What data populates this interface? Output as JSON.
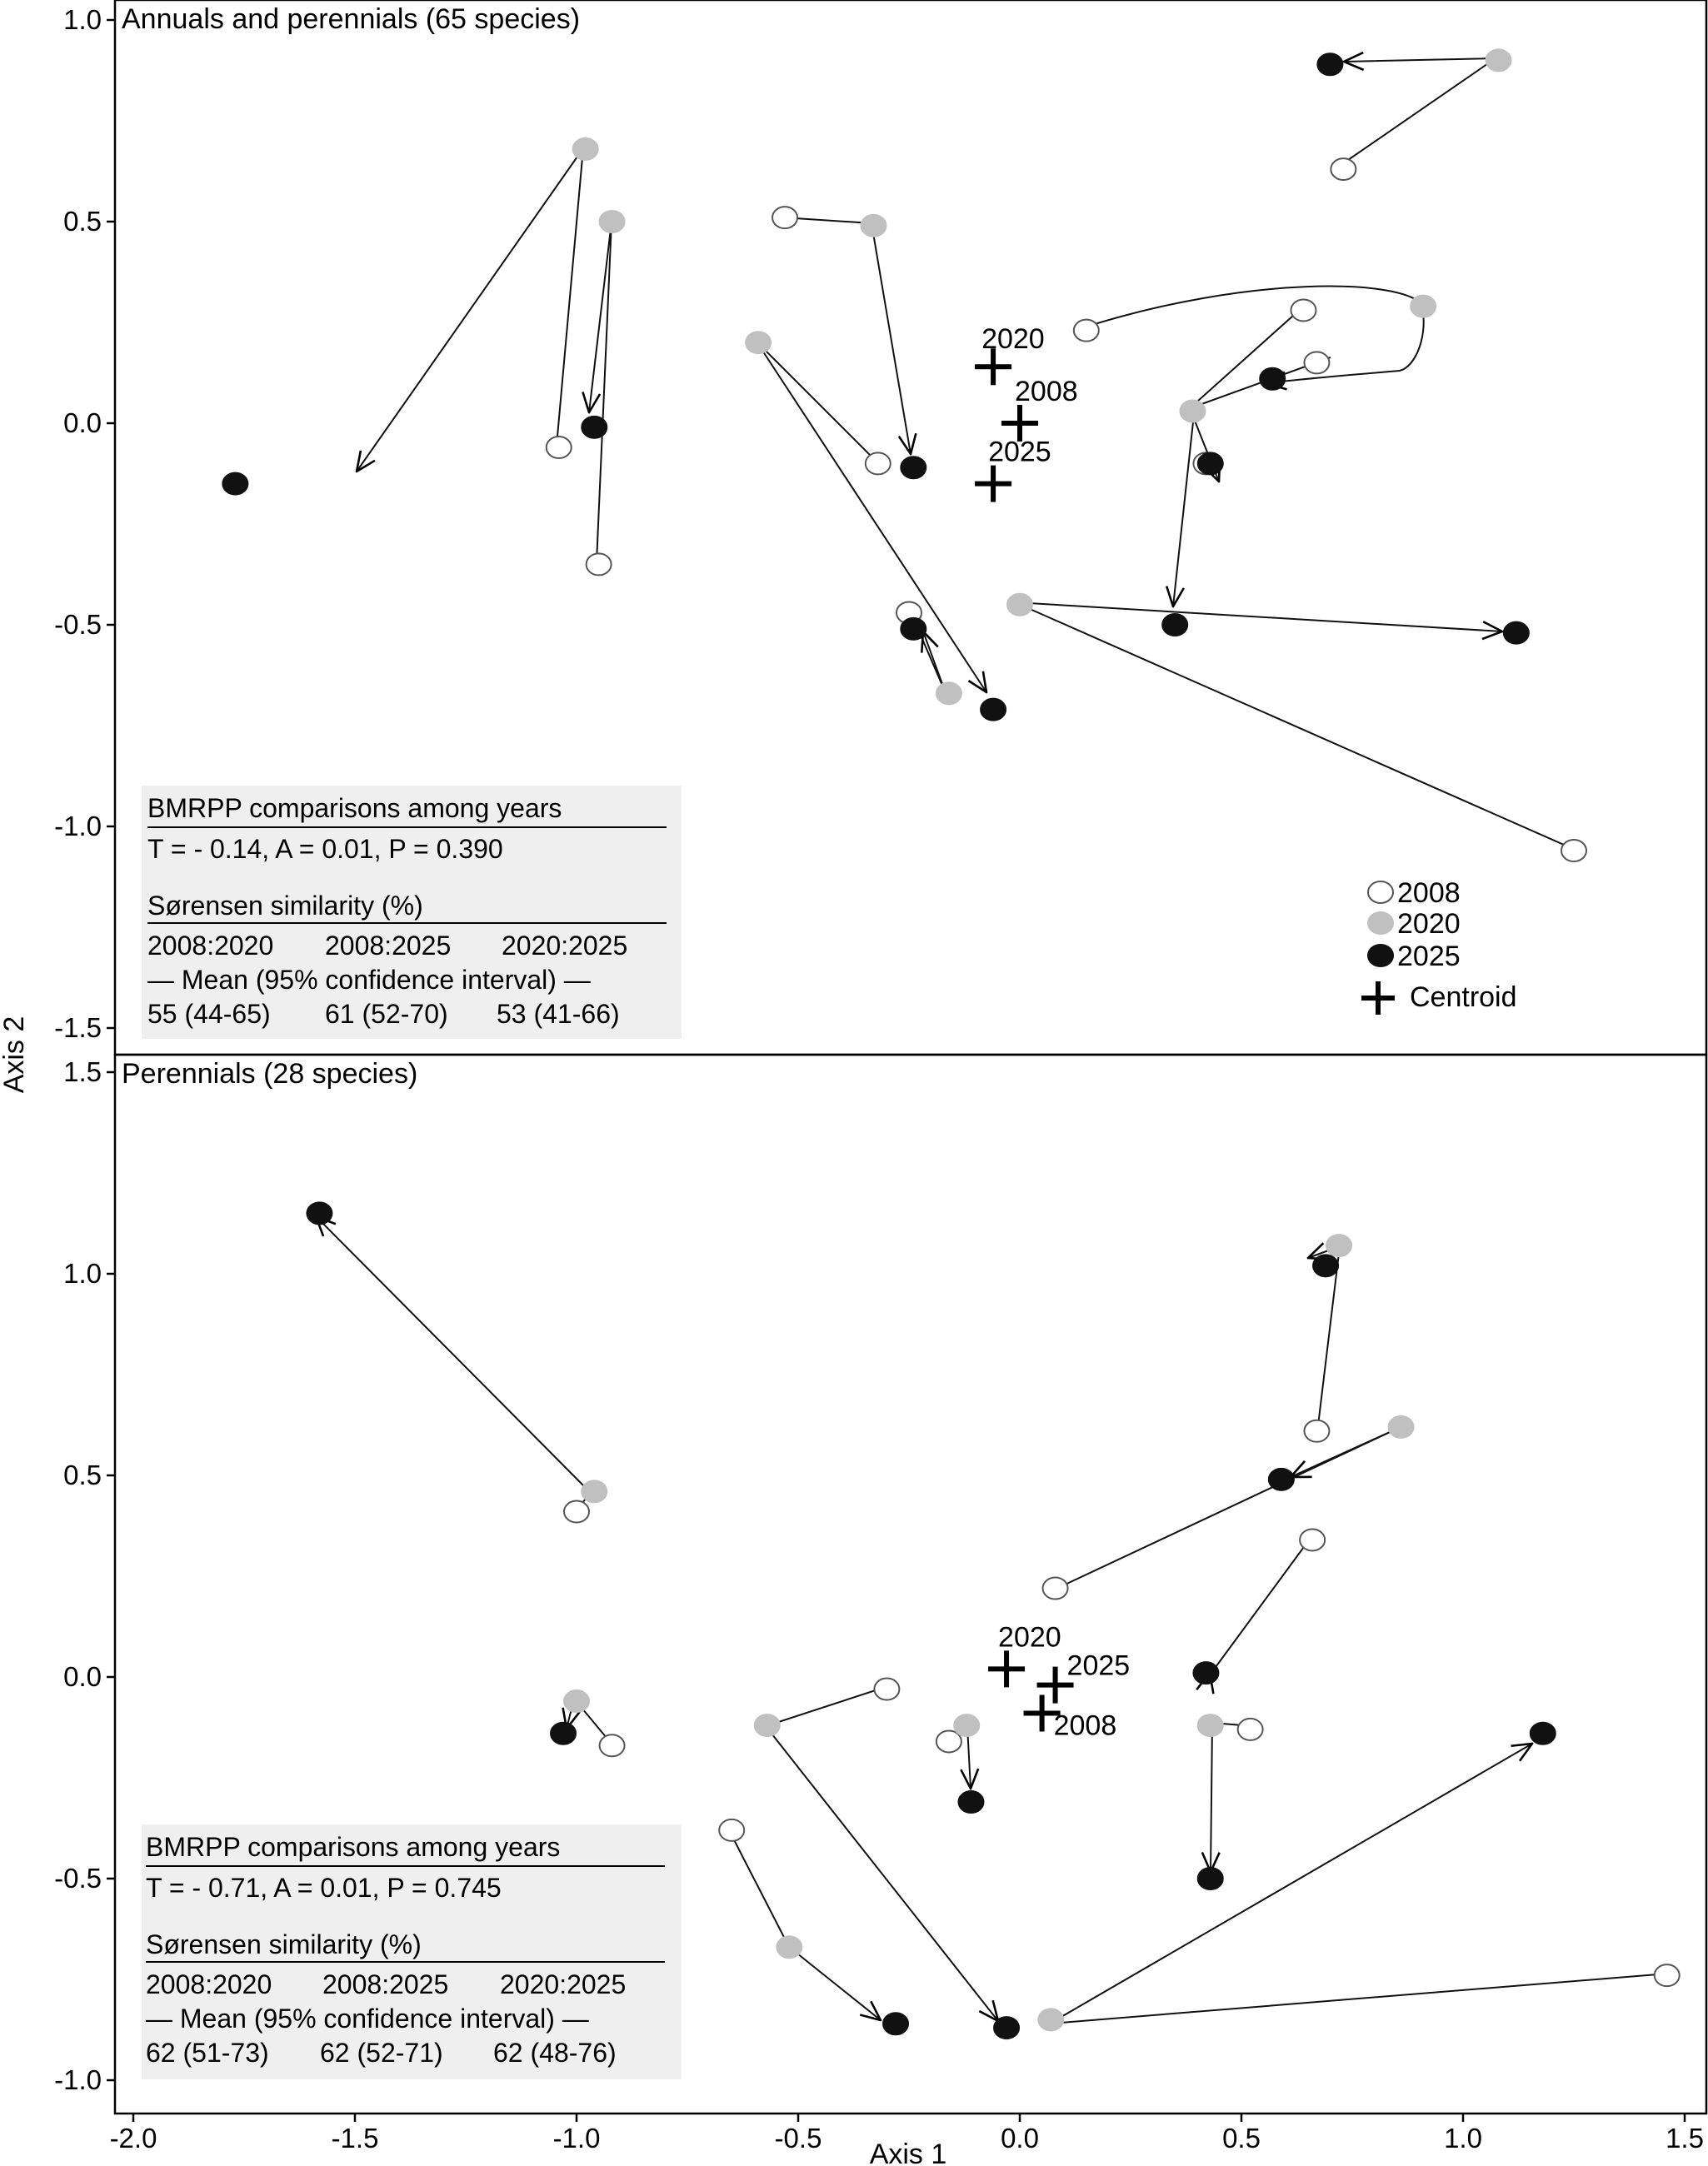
{
  "figure": {
    "xlabel": "Axis 1",
    "ylabel": "Axis 2"
  },
  "legend": {
    "items": [
      {
        "key": "2008",
        "label": "2008"
      },
      {
        "key": "2020",
        "label": "2020"
      },
      {
        "key": "2025",
        "label": "2025"
      },
      {
        "key": "centroid",
        "label": "Centroid"
      }
    ]
  },
  "colors": {
    "2008": "#ffffff",
    "2020": "#c0c0c0",
    "2025": "#111111",
    "box": "#efefef"
  },
  "chart_data": [
    {
      "type": "scatter",
      "title": "Annuals and perennials (65 species)",
      "xlabel": "Axis 1",
      "ylabel": "Axis 2",
      "xlim": [
        -2.05,
        1.55
      ],
      "ylim": [
        -1.55,
        1.05
      ],
      "xticks": [
        -2.0,
        -1.5,
        -1.0,
        -0.5,
        0.0,
        0.5,
        1.0,
        1.5
      ],
      "xtick_labels": [
        "-2.0",
        "-1.5",
        "-1.0",
        "-0.5",
        "0.0",
        "0.5",
        "1.0",
        "1.5"
      ],
      "yticks": [
        1.0,
        0.5,
        0.0,
        -0.5,
        -1.0,
        -1.5
      ],
      "ytick_labels": [
        "1.0",
        "0.5",
        "0.0",
        "-0.5",
        "-1.0",
        "-1.5"
      ],
      "series": [
        {
          "name": "2008",
          "x": [
            0.73,
            -1.04,
            -0.95,
            -0.53,
            -0.32,
            0.15,
            0.64,
            0.67,
            0.42,
            -0.25,
            1.25
          ],
          "y": [
            0.63,
            -0.06,
            -0.35,
            0.51,
            -0.1,
            0.23,
            0.28,
            0.15,
            -0.1,
            -0.47,
            -1.06
          ]
        },
        {
          "name": "2020",
          "x": [
            1.08,
            -0.98,
            -0.92,
            -0.33,
            -0.59,
            0.91,
            0.39,
            -0.16,
            0.0
          ],
          "y": [
            0.9,
            0.68,
            0.5,
            0.49,
            0.2,
            0.29,
            0.03,
            -0.67,
            -0.45
          ]
        },
        {
          "name": "2025",
          "x": [
            0.7,
            -1.77,
            -0.96,
            -0.24,
            0.57,
            0.43,
            0.35,
            1.12,
            -0.24,
            -0.06
          ],
          "y": [
            0.89,
            -0.15,
            -0.01,
            -0.11,
            0.11,
            -0.1,
            -0.5,
            -0.52,
            -0.51,
            -0.71
          ]
        }
      ],
      "centroids": [
        {
          "label": "2020",
          "x": -0.06,
          "y": 0.14
        },
        {
          "label": "2008",
          "x": 0.0,
          "y": 0.0
        },
        {
          "label": "2025",
          "x": -0.06,
          "y": -0.15
        }
      ],
      "stats": {
        "heading": "BMRPP comparisons among years",
        "result": "T = - 0.14, A = 0.01, P = 0.390",
        "similarity_heading": "Sørensen similarity (%)",
        "columns": [
          "2008:2020",
          "2008:2025",
          "2020:2025"
        ],
        "mean_label": "— Mean (95% confidence interval) —",
        "values": [
          "55 (44-65)",
          "61 (52-70)",
          "53 (41-66)"
        ]
      }
    },
    {
      "type": "scatter",
      "title": "Perennials (28 species)",
      "xlabel": "Axis 1",
      "ylabel": "Axis 2",
      "xlim": [
        -2.05,
        1.55
      ],
      "ylim": [
        -1.07,
        1.51
      ],
      "xticks": [
        -2.0,
        -1.5,
        -1.0,
        -0.5,
        0.0,
        0.5,
        1.0,
        1.5
      ],
      "xtick_labels": [
        "-2.0",
        "-1.5",
        "-1.0",
        "-0.5",
        "0.0",
        "0.5",
        "1.0",
        "1.5"
      ],
      "yticks": [
        1.5,
        1.0,
        0.5,
        0.0,
        -0.5,
        -1.0
      ],
      "ytick_labels": [
        "1.5",
        "1.0",
        "0.5",
        "0.0",
        "-0.5",
        "-1.0"
      ],
      "series": [
        {
          "name": "2008",
          "x": [
            -1.0,
            0.67,
            0.08,
            0.66,
            -0.92,
            -0.3,
            -0.16,
            0.52,
            -0.65,
            1.46
          ],
          "y": [
            0.41,
            0.61,
            0.22,
            0.34,
            -0.17,
            -0.03,
            -0.16,
            -0.13,
            -0.38,
            -0.74
          ]
        },
        {
          "name": "2020",
          "x": [
            -0.96,
            0.72,
            0.86,
            -1.0,
            -0.57,
            -0.12,
            0.43,
            -0.52,
            0.07
          ],
          "y": [
            0.46,
            1.07,
            0.62,
            -0.06,
            -0.12,
            -0.12,
            -0.12,
            -0.67,
            -0.85
          ]
        },
        {
          "name": "2025",
          "x": [
            -1.58,
            0.69,
            0.59,
            0.42,
            -1.03,
            -0.11,
            0.43,
            1.18,
            -0.28,
            -0.03
          ],
          "y": [
            1.15,
            1.02,
            0.49,
            0.01,
            -0.14,
            -0.31,
            -0.5,
            -0.14,
            -0.86,
            -0.87
          ]
        }
      ],
      "centroids": [
        {
          "label": "2020",
          "x": -0.03,
          "y": 0.02
        },
        {
          "label": "2025",
          "x": 0.08,
          "y": -0.02
        },
        {
          "label": "2008",
          "x": 0.05,
          "y": -0.09
        }
      ],
      "stats": {
        "heading": "BMRPP comparisons among years",
        "result": "T = - 0.71, A = 0.01, P = 0.745",
        "similarity_heading": "Sørensen similarity (%)",
        "columns": [
          "2008:2020",
          "2008:2025",
          "2020:2025"
        ],
        "mean_label": "— Mean (95% confidence interval) —",
        "values": [
          "62 (51-73)",
          "62 (52-71)",
          "62 (48-76)"
        ]
      }
    }
  ]
}
